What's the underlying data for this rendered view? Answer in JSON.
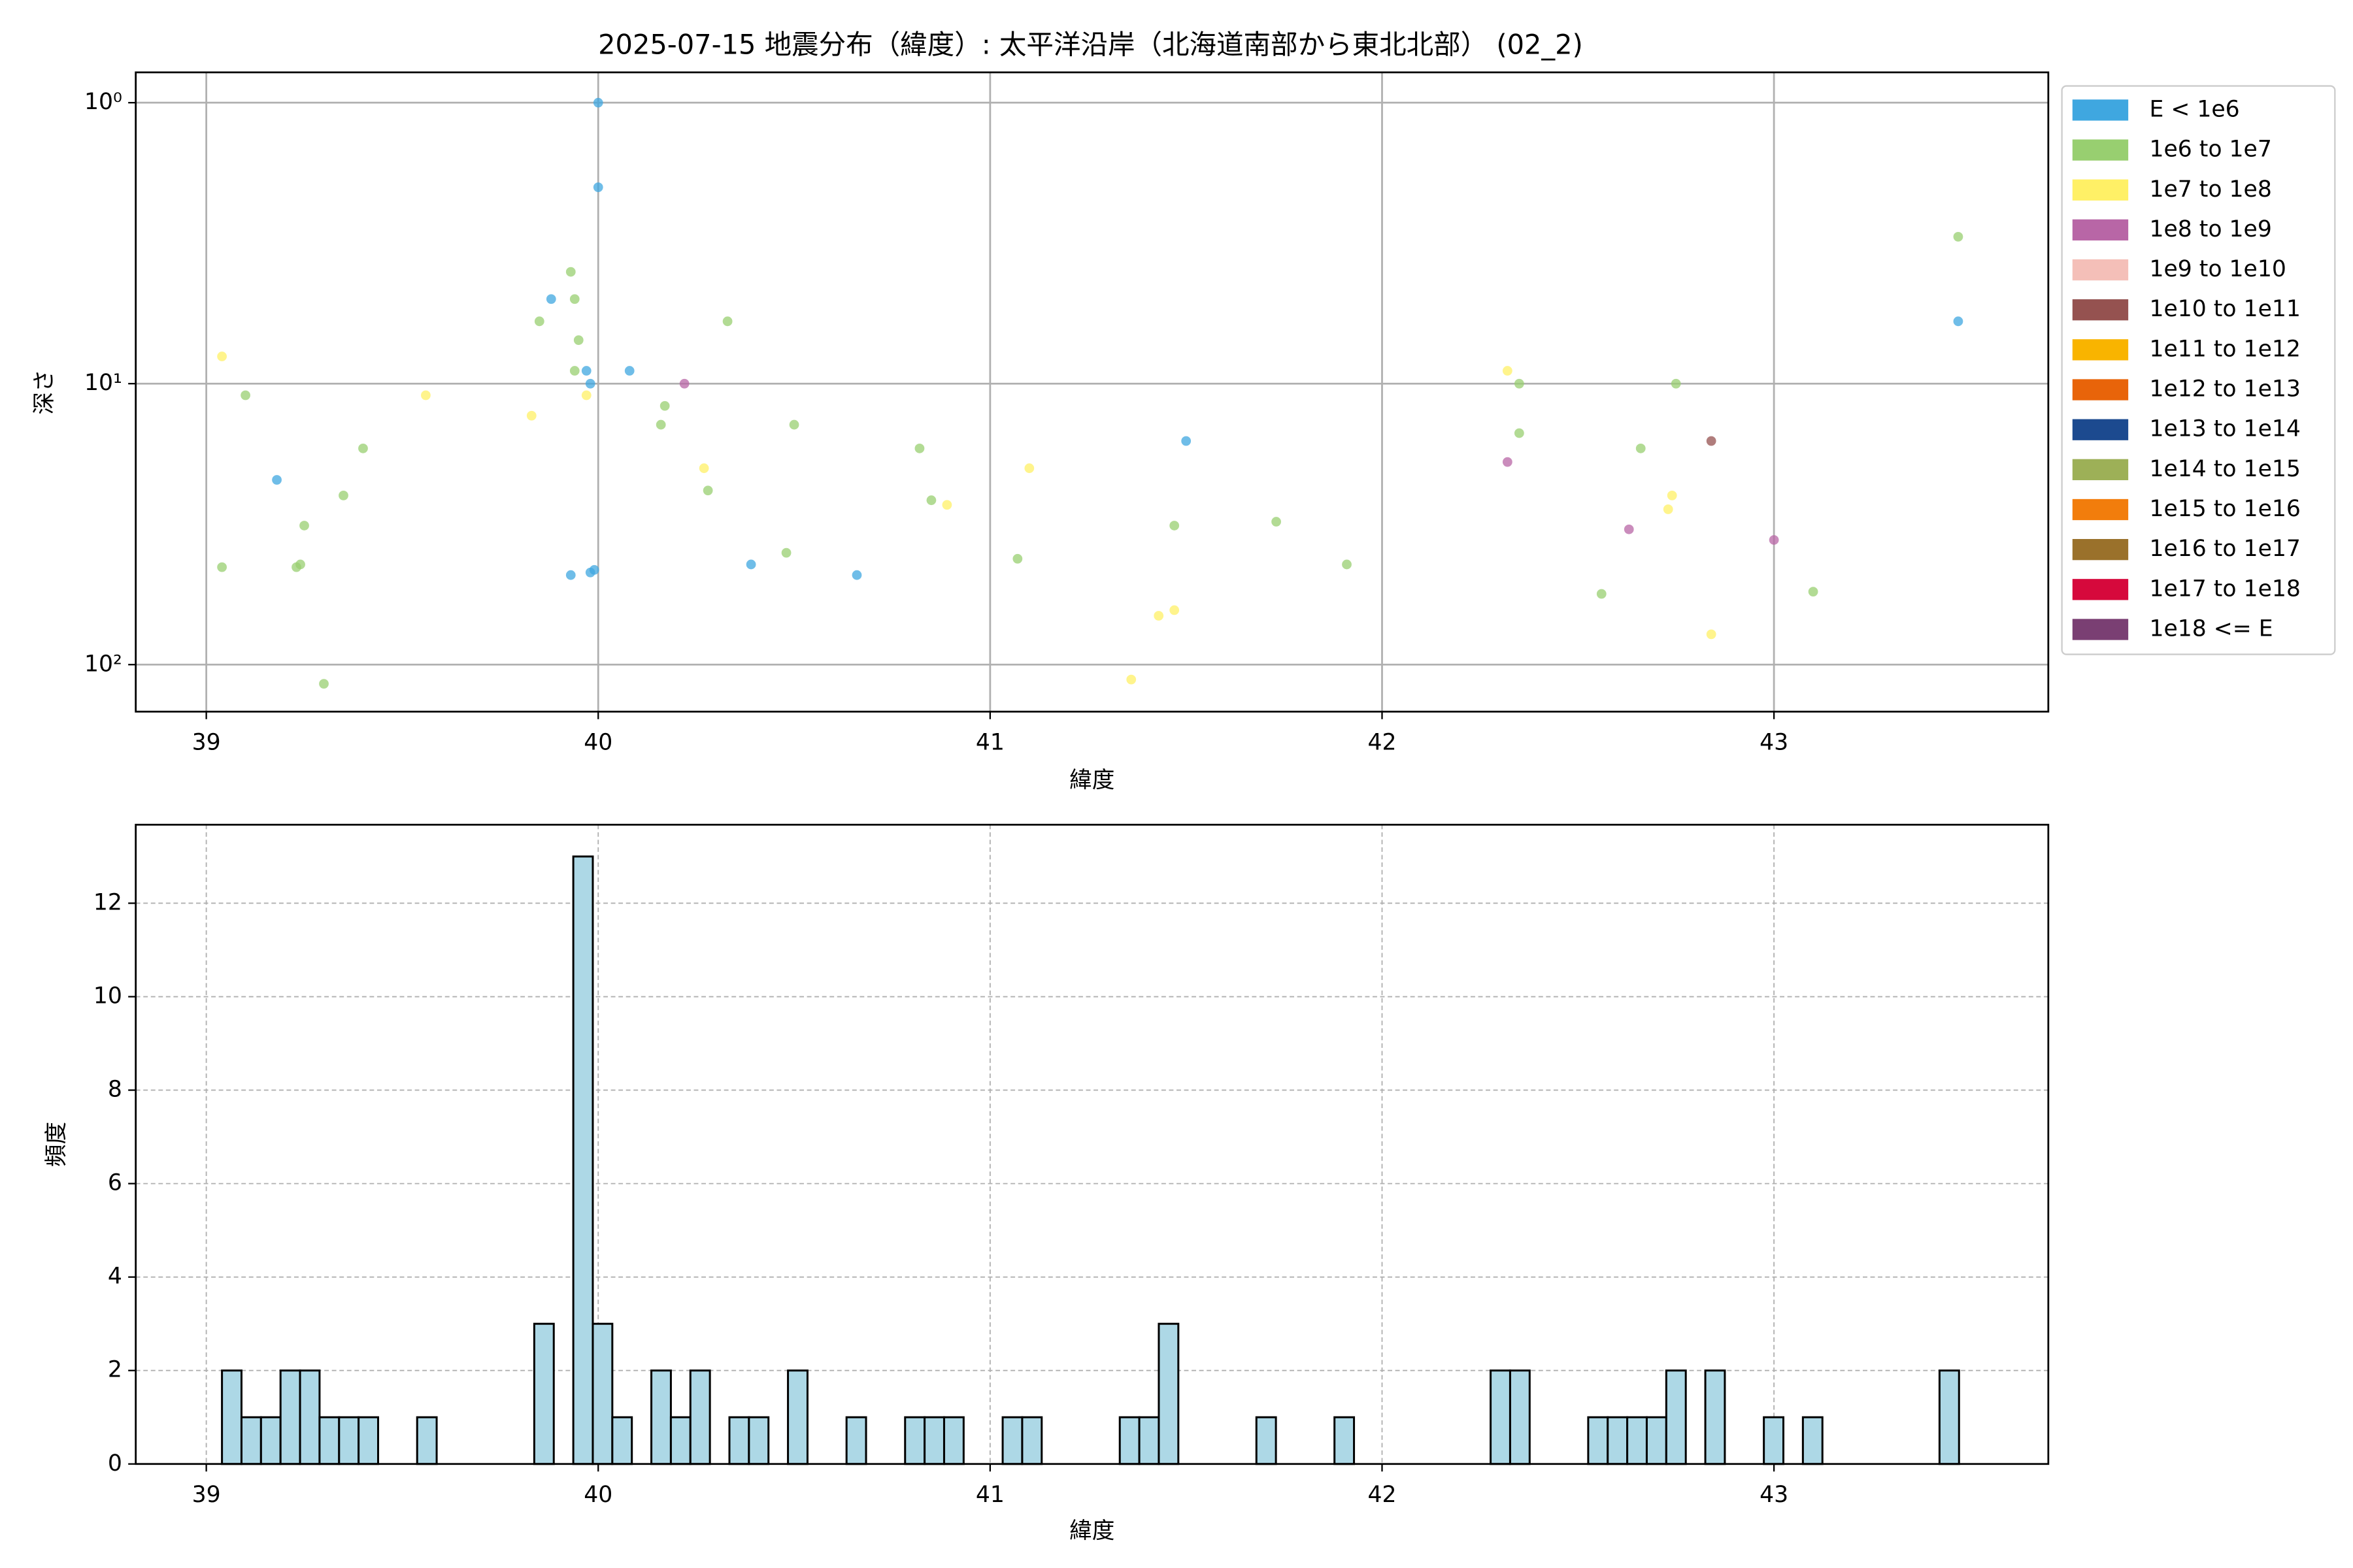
{
  "chart_data": [
    {
      "type": "scatter",
      "title": "2025-07-15 地震分布（緯度）: 太平洋沿岸（北海道南部から東北北部） (02_2)",
      "xlabel": "緯度",
      "ylabel": "深さ",
      "xlim": [
        38.82,
        43.7
      ],
      "ylim": [
        147,
        0.78
      ],
      "log_y": true,
      "grid": true,
      "legend": "outside-right",
      "xticks": [
        39,
        40,
        41,
        42,
        43
      ],
      "yticks": [
        {
          "value": 1,
          "label": "10⁰"
        },
        {
          "value": 10,
          "label": "10¹"
        },
        {
          "value": 100,
          "label": "10²"
        }
      ],
      "series": [
        {
          "name": "E < 1e6",
          "color": "#3fa7e0",
          "x": [
            40.0,
            40.0,
            39.88,
            39.97,
            39.98,
            40.08,
            39.18,
            40.39,
            40.66,
            39.93,
            39.98,
            39.99,
            41.5,
            43.47
          ],
          "values": [
            1.0,
            2.0,
            5.0,
            9.0,
            10,
            9.0,
            22,
            44,
            48,
            48,
            47,
            46,
            16,
            6.0
          ]
        },
        {
          "name": "1e6 to 1e7",
          "color": "#98cf70",
          "x": [
            43.47,
            39.93,
            39.94,
            39.85,
            39.95,
            39.94,
            40.33,
            39.1,
            39.4,
            40.17,
            40.16,
            40.5,
            39.35,
            40.28,
            39.25,
            39.04,
            39.24,
            39.23,
            39.3,
            40.48,
            40.82,
            40.85,
            41.07,
            41.47,
            41.73,
            41.91,
            42.35,
            42.35,
            42.75,
            42.66,
            42.56,
            43.1
          ],
          "values": [
            3.0,
            4.0,
            5.0,
            6.0,
            7.0,
            9.0,
            6.0,
            11,
            17,
            12,
            14,
            14,
            25,
            24,
            32,
            45,
            44,
            45,
            117,
            40,
            17,
            26,
            42,
            32,
            31,
            44,
            10,
            15,
            10,
            17,
            56,
            55
          ]
        },
        {
          "name": "1e7 to 1e8",
          "color": "#fff066",
          "x": [
            39.04,
            39.56,
            39.83,
            39.97,
            40.27,
            40.89,
            41.1,
            41.43,
            41.47,
            41.36,
            42.32,
            42.74,
            42.73,
            42.84
          ],
          "values": [
            8.0,
            11,
            13,
            11,
            20,
            27,
            20,
            67,
            64,
            113,
            9.0,
            25,
            28,
            78
          ]
        },
        {
          "name": "1e8 to 1e9",
          "color": "#b866a6",
          "x": [
            40.22,
            42.32,
            42.63,
            43.0
          ],
          "values": [
            10,
            19,
            33,
            36
          ]
        },
        {
          "name": "1e9 to 1e10",
          "color": "#f4bfb8",
          "x": [],
          "values": []
        },
        {
          "name": "1e10 to 1e11",
          "color": "#955250",
          "x": [
            42.84
          ],
          "values": [
            16
          ]
        },
        {
          "name": "1e11 to 1e12",
          "color": "#f9b400",
          "x": [],
          "values": []
        },
        {
          "name": "1e12 to 1e13",
          "color": "#e8640a",
          "x": [],
          "values": []
        },
        {
          "name": "1e13 to 1e14",
          "color": "#1c4a8f",
          "x": [],
          "values": []
        },
        {
          "name": "1e14 to 1e15",
          "color": "#9db057",
          "x": [],
          "values": []
        },
        {
          "name": "1e15 to 1e16",
          "color": "#f27d0c",
          "x": [],
          "values": []
        },
        {
          "name": "1e16 to 1e17",
          "color": "#9a712b",
          "x": [],
          "values": []
        },
        {
          "name": "1e17 to 1e18",
          "color": "#d6093c",
          "x": [],
          "values": []
        },
        {
          "name": "1e18 <= E",
          "color": "#7a3f73",
          "x": [],
          "values": []
        }
      ]
    },
    {
      "type": "histogram",
      "xlabel": "緯度",
      "ylabel": "頻度",
      "xlim": [
        38.82,
        43.7
      ],
      "ylim": [
        0,
        13.68
      ],
      "grid": true,
      "grid_style": "dashed",
      "color": "#add8e6",
      "edgecolor": "#000000",
      "xticks": [
        39,
        40,
        41,
        42,
        43
      ],
      "yticks": [
        0,
        2,
        4,
        6,
        8,
        10,
        12
      ],
      "bins": [
        39.04,
        39.0898,
        39.1396,
        39.1894,
        39.2392,
        39.289,
        39.3388,
        39.3886,
        39.4384,
        39.4882,
        39.538,
        39.5878,
        39.6376,
        39.6874,
        39.7372,
        39.787,
        39.8368,
        39.8866,
        39.9364,
        39.9862,
        40.036,
        40.0858,
        40.1356,
        40.1854,
        40.2352,
        40.285,
        40.3348,
        40.3846,
        40.4344,
        40.4842,
        40.534,
        40.5838,
        40.6336,
        40.6834,
        40.7332,
        40.783,
        40.8328,
        40.8826,
        40.9324,
        40.9822,
        41.032,
        41.0818,
        41.1316,
        41.1814,
        41.2312,
        41.281,
        41.3308,
        41.3806,
        41.4304,
        41.4802,
        41.53,
        41.5798,
        41.6296,
        41.6794,
        41.7292,
        41.779,
        41.8288,
        41.8786,
        41.9284,
        41.9782,
        42.028,
        42.0778,
        42.1276,
        42.1774,
        42.2272,
        42.277,
        42.3268,
        42.3766,
        42.4264,
        42.4762,
        42.526,
        42.5758,
        42.6256,
        42.6754,
        42.7252,
        42.775,
        42.8248,
        42.8746,
        42.9244,
        42.9742,
        43.024,
        43.0738,
        43.1236,
        43.1734,
        43.2232,
        43.273,
        43.3228,
        43.3726,
        43.4224,
        43.4722
      ],
      "values": [
        2,
        1,
        1,
        2,
        2,
        1,
        1,
        1,
        0,
        0,
        1,
        0,
        0,
        0,
        0,
        0,
        3,
        0,
        13,
        3,
        1,
        0,
        2,
        1,
        2,
        0,
        1,
        1,
        0,
        2,
        0,
        0,
        1,
        0,
        0,
        1,
        1,
        1,
        0,
        0,
        1,
        1,
        0,
        0,
        0,
        0,
        1,
        1,
        3,
        0,
        0,
        0,
        0,
        1,
        0,
        0,
        0,
        1,
        0,
        0,
        0,
        0,
        0,
        0,
        0,
        2,
        2,
        0,
        0,
        0,
        1,
        1,
        1,
        1,
        2,
        0,
        2,
        0,
        0,
        1,
        0,
        1,
        0,
        0,
        0,
        0,
        0,
        0,
        2
      ]
    }
  ]
}
